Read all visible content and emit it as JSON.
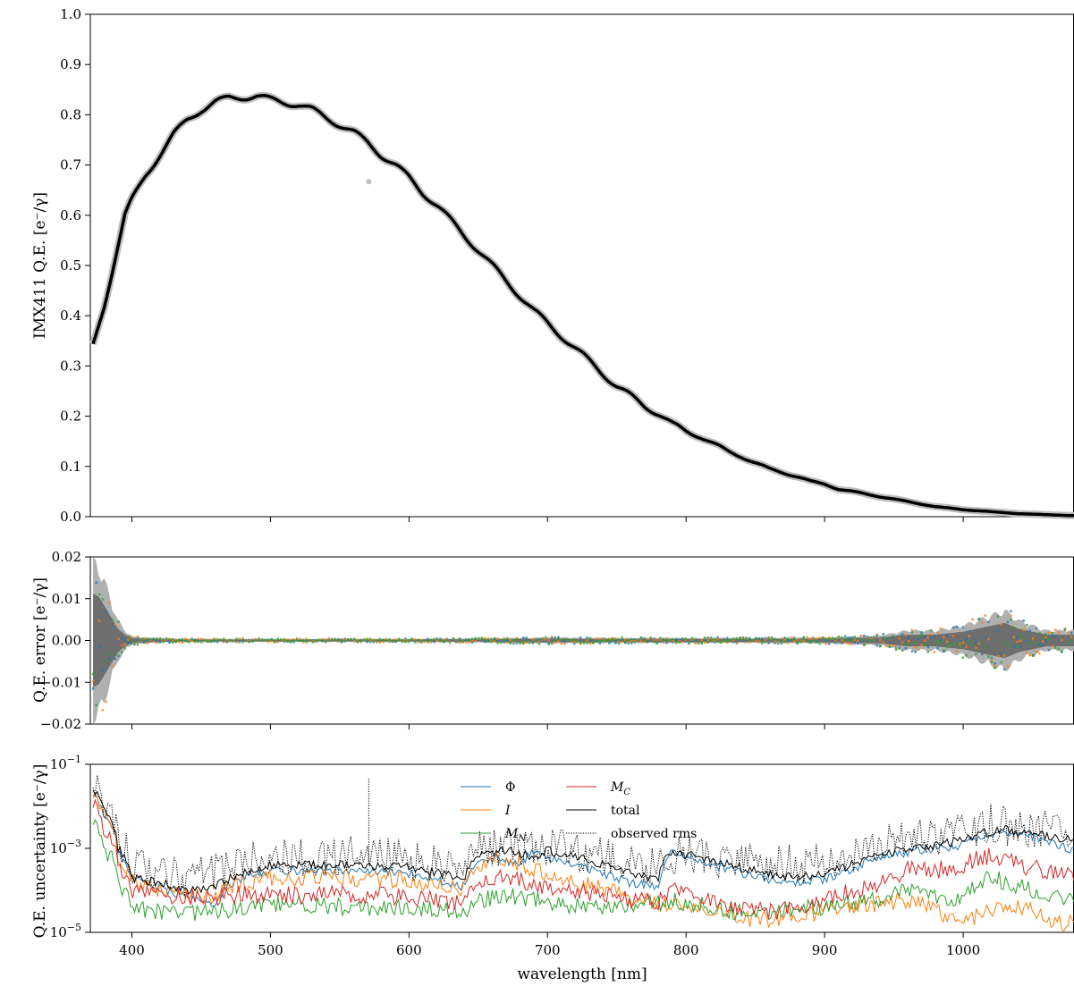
{
  "chart_data": [
    {
      "type": "line",
      "ylabel": "IMX411 Q.E. [e⁻/γ]",
      "xlim": [
        370,
        1080
      ],
      "ylim": [
        0,
        1.0
      ],
      "yticks": [
        "0.0",
        "0.1",
        "0.2",
        "0.3",
        "0.4",
        "0.5",
        "0.6",
        "0.7",
        "0.8",
        "0.9",
        "1.0"
      ],
      "series": [
        {
          "x": [
            372,
            375,
            380,
            385,
            390,
            395,
            400,
            410,
            420,
            430,
            440,
            450,
            460,
            470,
            480,
            490,
            500,
            510,
            520,
            530,
            540,
            550,
            560,
            570,
            580,
            590,
            600,
            610,
            620,
            630,
            640,
            650,
            660,
            670,
            680,
            690,
            700,
            710,
            720,
            730,
            740,
            750,
            760,
            770,
            780,
            790,
            800,
            810,
            820,
            830,
            840,
            850,
            860,
            870,
            880,
            890,
            900,
            910,
            920,
            930,
            940,
            950,
            960,
            970,
            980,
            990,
            1000,
            1010,
            1020,
            1030,
            1040,
            1050,
            1060,
            1070,
            1080
          ],
          "values": [
            0.34,
            0.37,
            0.42,
            0.48,
            0.54,
            0.6,
            0.63,
            0.68,
            0.72,
            0.76,
            0.79,
            0.81,
            0.825,
            0.833,
            0.835,
            0.837,
            0.83,
            0.825,
            0.82,
            0.81,
            0.795,
            0.78,
            0.765,
            0.745,
            0.72,
            0.7,
            0.675,
            0.645,
            0.62,
            0.59,
            0.56,
            0.53,
            0.5,
            0.47,
            0.44,
            0.41,
            0.385,
            0.36,
            0.335,
            0.31,
            0.285,
            0.26,
            0.24,
            0.22,
            0.205,
            0.185,
            0.17,
            0.16,
            0.145,
            0.13,
            0.12,
            0.107,
            0.095,
            0.088,
            0.08,
            0.07,
            0.065,
            0.055,
            0.05,
            0.045,
            0.04,
            0.035,
            0.03,
            0.025,
            0.02,
            0.017,
            0.014,
            0.012,
            0.01,
            0.008,
            0.006,
            0.005,
            0.004,
            0.003,
            0.002
          ]
        }
      ],
      "outlier": {
        "x": 571,
        "value": 0.667
      }
    },
    {
      "type": "scatter",
      "ylabel": "Q.E. error [e⁻/γ]",
      "xlim": [
        370,
        1080
      ],
      "ylim": [
        -0.02,
        0.02
      ],
      "yticks": [
        "−0.02",
        "−0.01",
        "0.00",
        "0.01",
        "0.02"
      ],
      "envelope": {
        "x": [
          372,
          376,
          380,
          385,
          390,
          395,
          400,
          420,
          440,
          460,
          500,
          550,
          600,
          650,
          700,
          750,
          800,
          850,
          900,
          940,
          960,
          980,
          1000,
          1010,
          1020,
          1030,
          1040,
          1050,
          1060,
          1070,
          1080
        ],
        "values": [
          0.016,
          0.015,
          0.012,
          0.008,
          0.004,
          0.002,
          0.0008,
          0.0004,
          0.0003,
          0.0003,
          0.0003,
          0.0003,
          0.0003,
          0.0004,
          0.0006,
          0.0005,
          0.0005,
          0.0005,
          0.0006,
          0.001,
          0.002,
          0.002,
          0.003,
          0.004,
          0.005,
          0.006,
          0.004,
          0.003,
          0.002,
          0.002,
          0.002
        ]
      },
      "series_colors": [
        "#1f77b4",
        "#ff7f0e",
        "#2ca02c"
      ]
    },
    {
      "type": "line",
      "ylabel": "Q.E. uncertainty [e⁻/γ]",
      "xlabel": "wavelength [nm]",
      "xlim": [
        370,
        1080
      ],
      "yscale": "log",
      "ylim": [
        1e-05,
        0.1
      ],
      "yticks": [
        {
          "base": "10",
          "exp": "−5",
          "value": 1e-05
        },
        {
          "base": "10",
          "exp": "−3",
          "value": 0.001
        },
        {
          "base": "10",
          "exp": "−1",
          "value": 0.1
        }
      ],
      "xticks": [
        "400",
        "500",
        "600",
        "700",
        "800",
        "900",
        "1000"
      ],
      "legend": {
        "placement": "upper-center",
        "entries": [
          {
            "label": "Φ",
            "color": "#1f77b4",
            "style": "solid"
          },
          {
            "label": "I",
            "color": "#ff7f0e",
            "style": "solid"
          },
          {
            "label": "M",
            "sub": "N",
            "color": "#2ca02c",
            "style": "solid"
          },
          {
            "label": "M",
            "sub": "C",
            "color": "#d62728",
            "style": "solid"
          },
          {
            "label": "total",
            "color": "#000000",
            "style": "solid"
          },
          {
            "label": "observed rms",
            "color": "#000000",
            "style": "dotted"
          }
        ]
      },
      "series": [
        {
          "name": "Φ",
          "color": "#1f77b4",
          "x": [
            372,
            380,
            390,
            400,
            420,
            440,
            460,
            480,
            500,
            550,
            600,
            640,
            650,
            660,
            680,
            690,
            700,
            720,
            740,
            760,
            780,
            790,
            800,
            820,
            840,
            860,
            880,
            900,
            920,
            940,
            960,
            980,
            1000,
            1020,
            1040,
            1060,
            1080
          ],
          "values": [
            0.02,
            0.006,
            0.0008,
            0.0002,
            0.00012,
            6e-05,
            5e-05,
            0.0002,
            0.0003,
            0.0003,
            0.00025,
            0.00012,
            0.0005,
            0.0006,
            0.0004,
            0.0008,
            0.0006,
            0.0004,
            0.00025,
            0.00015,
            0.00012,
            0.0008,
            0.0006,
            0.0004,
            0.00025,
            0.00018,
            0.00015,
            0.00018,
            0.0003,
            0.0006,
            0.0008,
            0.001,
            0.0012,
            0.002,
            0.0025,
            0.0015,
            0.0008
          ]
        },
        {
          "name": "I",
          "color": "#ff7f0e",
          "x": [
            372,
            380,
            390,
            400,
            420,
            440,
            460,
            480,
            500,
            550,
            600,
            640,
            650,
            670,
            690,
            700,
            720,
            740,
            760,
            780,
            800,
            820,
            840,
            860,
            880,
            900,
            920,
            940,
            960,
            980,
            1000,
            1020,
            1040,
            1060,
            1080
          ],
          "values": [
            0.018,
            0.005,
            0.0007,
            0.00015,
            0.0001,
            8e-05,
            6e-05,
            0.00015,
            0.0002,
            0.0002,
            0.00018,
            0.0001,
            0.0004,
            0.0006,
            0.0003,
            0.00025,
            0.00015,
            0.0001,
            7e-05,
            5e-05,
            4e-05,
            3e-05,
            2e-05,
            2e-05,
            2.5e-05,
            3e-05,
            4e-05,
            5e-05,
            6e-05,
            3e-05,
            2e-05,
            3e-05,
            4e-05,
            2e-05,
            1.5e-05
          ]
        },
        {
          "name": "M_N",
          "color": "#2ca02c",
          "x": [
            372,
            380,
            390,
            400,
            420,
            440,
            460,
            480,
            500,
            550,
            600,
            640,
            650,
            670,
            690,
            700,
            720,
            740,
            760,
            780,
            790,
            800,
            820,
            840,
            860,
            880,
            900,
            920,
            940,
            960,
            980,
            1000,
            1020,
            1040,
            1060,
            1080
          ],
          "values": [
            0.004,
            0.001,
            0.00015,
            4e-05,
            3e-05,
            3e-05,
            3e-05,
            4e-05,
            5e-05,
            4e-05,
            4e-05,
            3e-05,
            6e-05,
            8e-05,
            6e-05,
            5e-05,
            4e-05,
            4e-05,
            4e-05,
            5e-05,
            6e-05,
            5e-05,
            4e-05,
            3e-05,
            3e-05,
            4e-05,
            4e-05,
            5e-05,
            6e-05,
            0.0001,
            7e-05,
            6e-05,
            0.0002,
            0.00012,
            8e-05,
            6e-05
          ]
        },
        {
          "name": "M_C",
          "color": "#d62728",
          "x": [
            372,
            380,
            390,
            400,
            420,
            440,
            460,
            480,
            500,
            550,
            600,
            640,
            650,
            670,
            690,
            700,
            720,
            740,
            760,
            780,
            790,
            800,
            820,
            840,
            860,
            880,
            900,
            920,
            940,
            960,
            980,
            1000,
            1020,
            1040,
            1060,
            1080
          ],
          "values": [
            0.01,
            0.003,
            0.0004,
            0.0001,
            8e-05,
            7e-05,
            7e-05,
            8e-05,
            8e-05,
            8e-05,
            7e-05,
            5e-05,
            0.00015,
            0.0002,
            0.00015,
            0.00012,
            0.0001,
            8e-05,
            6e-05,
            5e-05,
            0.0001,
            8e-05,
            5e-05,
            4e-05,
            3e-05,
            4e-05,
            6e-05,
            0.0001,
            0.00015,
            0.0003,
            0.0003,
            0.0004,
            0.0007,
            0.0004,
            0.0003,
            0.00025
          ]
        },
        {
          "name": "total",
          "color": "#000000",
          "x": [
            372,
            380,
            390,
            400,
            420,
            440,
            460,
            480,
            500,
            550,
            600,
            640,
            650,
            670,
            690,
            700,
            720,
            740,
            760,
            780,
            790,
            800,
            820,
            840,
            860,
            880,
            900,
            920,
            940,
            960,
            980,
            1000,
            1010,
            1020,
            1030,
            1040,
            1050,
            1060,
            1080
          ],
          "values": [
            0.025,
            0.008,
            0.001,
            0.0002,
            0.00015,
            0.0001,
            0.00012,
            0.00025,
            0.0004,
            0.0004,
            0.00035,
            0.00018,
            0.0007,
            0.0009,
            0.0006,
            0.0009,
            0.0006,
            0.0004,
            0.00025,
            0.00018,
            0.0009,
            0.0007,
            0.0005,
            0.00035,
            0.00025,
            0.0002,
            0.00025,
            0.0004,
            0.0007,
            0.001,
            0.0012,
            0.0015,
            0.002,
            0.0025,
            0.003,
            0.002,
            0.0025,
            0.002,
            0.0015
          ]
        },
        {
          "name": "observed rms",
          "color": "#000000",
          "dotted": true,
          "x": [
            372,
            380,
            390,
            400,
            420,
            440,
            460,
            480,
            500,
            550,
            570,
            600,
            640,
            650,
            670,
            690,
            700,
            720,
            740,
            760,
            780,
            800,
            820,
            840,
            860,
            880,
            900,
            920,
            940,
            960,
            980,
            1000,
            1020,
            1040,
            1060,
            1080
          ],
          "values": [
            0.03,
            0.01,
            0.0015,
            0.0003,
            0.0003,
            0.0002,
            0.00025,
            0.0004,
            0.0006,
            0.0006,
            0.0008,
            0.0005,
            0.0003,
            0.001,
            0.001,
            0.0008,
            0.001,
            0.0008,
            0.0006,
            0.0004,
            0.0004,
            0.0008,
            0.0006,
            0.0005,
            0.0004,
            0.0004,
            0.0005,
            0.0008,
            0.0012,
            0.002,
            0.002,
            0.002,
            0.004,
            0.003,
            0.003,
            0.002
          ]
        }
      ]
    }
  ]
}
